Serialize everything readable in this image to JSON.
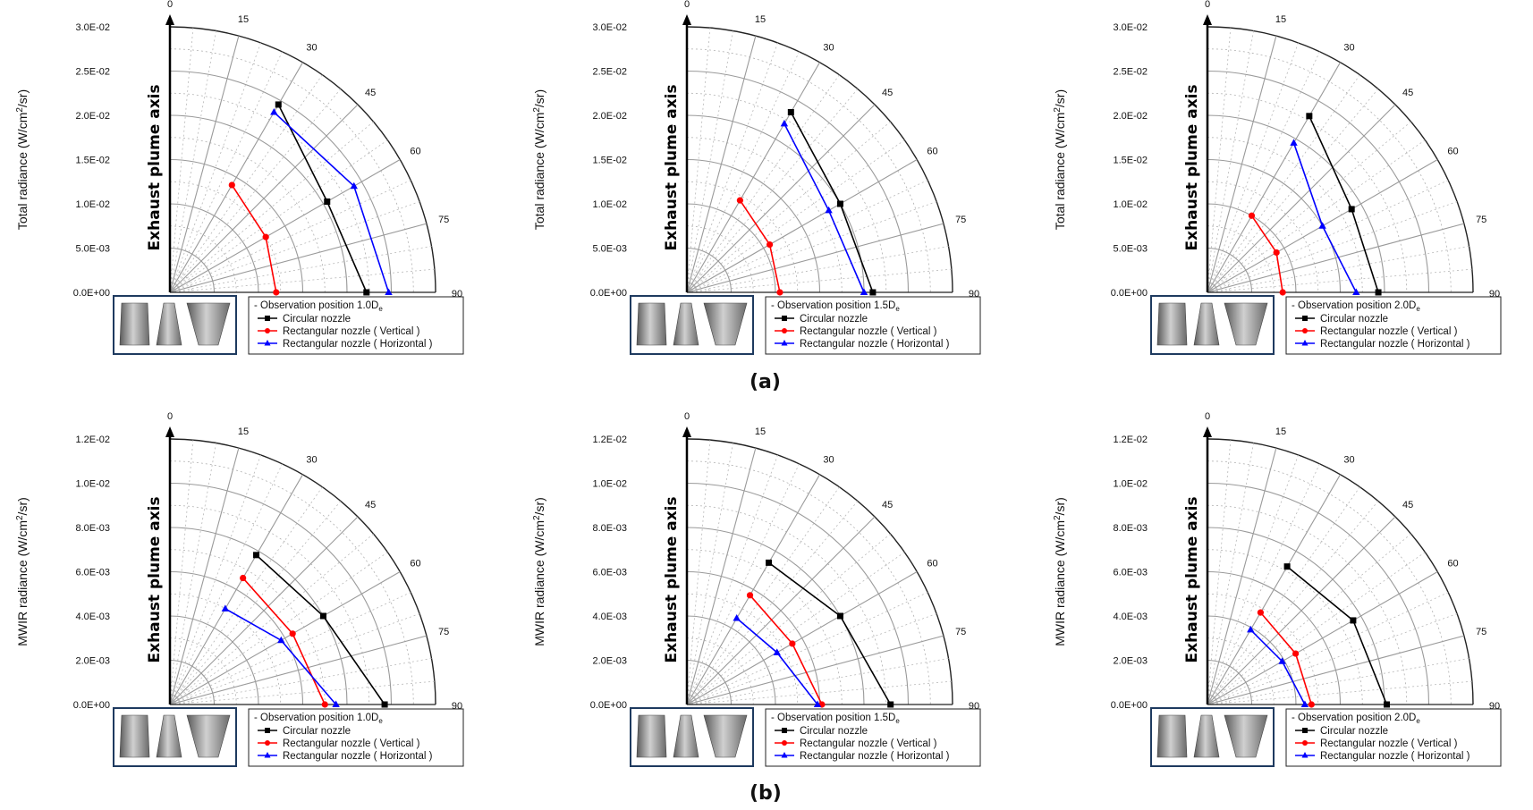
{
  "figure": {
    "caption_a": "(a)",
    "caption_b": "(b)",
    "axis_title": "Exhaust plume axis",
    "row_labels": {
      "a": {
        "ylabel_prefix": "Total radiance (W/cm",
        "ylabel_sup": "2",
        "ylabel_suffix": "/sr)"
      },
      "b": {
        "ylabel_prefix": "MWIR radiance  (W/cm",
        "ylabel_sup": "2",
        "ylabel_suffix": "/sr)"
      }
    },
    "legend_entries": [
      "Circular nozzle",
      "Rectangular nozzle ( Vertical )",
      "Rectangular nozzle ( Horizontal )"
    ],
    "series_colors": [
      "#000000",
      "#ff0000",
      "#0000ff"
    ],
    "series_markers": [
      "square",
      "circle",
      "triangle"
    ],
    "angle_ticks": [
      0,
      15,
      30,
      45,
      60,
      75,
      90
    ]
  },
  "chart_data": [
    {
      "type": "polar-line",
      "row": "a",
      "title": "- Observation position 1.0D",
      "title_subscript": "e",
      "ylabel": "Total radiance (W/cm2/sr)",
      "rlim": [
        0,
        0.03
      ],
      "r_ticks": [
        "0.0E+00",
        "5.0E-03",
        "1.0E-02",
        "1.5E-02",
        "2.0E-02",
        "2.5E-02",
        "3.0E-02"
      ],
      "angles": [
        30,
        60,
        90
      ],
      "series": [
        {
          "name": "Circular nozzle",
          "values": [
            0.0245,
            0.0205,
            0.0222
          ]
        },
        {
          "name": "Rectangular nozzle ( Vertical )",
          "values": [
            0.014,
            0.0125,
            0.012
          ]
        },
        {
          "name": "Rectangular nozzle ( Horizontal )",
          "values": [
            0.0235,
            0.024,
            0.0247
          ]
        }
      ]
    },
    {
      "type": "polar-line",
      "row": "a",
      "title": "- Observation position 1.5D",
      "title_subscript": "e",
      "ylabel": "Total radiance (W/cm2/sr)",
      "rlim": [
        0,
        0.03
      ],
      "r_ticks": [
        "0.0E+00",
        "5.0E-03",
        "1.0E-02",
        "1.5E-02",
        "2.0E-02",
        "2.5E-02",
        "3.0E-02"
      ],
      "angles": [
        30,
        60,
        90
      ],
      "series": [
        {
          "name": "Circular nozzle",
          "values": [
            0.0235,
            0.02,
            0.021
          ]
        },
        {
          "name": "Rectangular nozzle ( Vertical )",
          "values": [
            0.012,
            0.0108,
            0.0105
          ]
        },
        {
          "name": "Rectangular nozzle ( Horizontal )",
          "values": [
            0.022,
            0.0185,
            0.02
          ]
        }
      ]
    },
    {
      "type": "polar-line",
      "row": "a",
      "title": "- Observation position 2.0D",
      "title_subscript": "e",
      "ylabel": "Total radiance (W/cm2/sr)",
      "rlim": [
        0,
        0.03
      ],
      "r_ticks": [
        "0.0E+00",
        "5.0E-03",
        "1.0E-02",
        "1.5E-02",
        "2.0E-02",
        "2.5E-02",
        "3.0E-02"
      ],
      "angles": [
        30,
        60,
        90
      ],
      "series": [
        {
          "name": "Circular nozzle",
          "values": [
            0.023,
            0.0188,
            0.0193
          ]
        },
        {
          "name": "Rectangular nozzle ( Vertical )",
          "values": [
            0.01,
            0.009,
            0.0085
          ]
        },
        {
          "name": "Rectangular nozzle ( Horizontal )",
          "values": [
            0.0195,
            0.015,
            0.0168
          ]
        }
      ]
    },
    {
      "type": "polar-line",
      "row": "b",
      "title": "- Observation position 1.0D",
      "title_subscript": "e",
      "ylabel": "MWIR radiance (W/cm2/sr)",
      "rlim": [
        0,
        0.012
      ],
      "r_ticks": [
        "0.0E+00",
        "2.0E-03",
        "4.0E-03",
        "6.0E-03",
        "8.0E-03",
        "1.0E-02",
        "1.2E-02"
      ],
      "angles": [
        30,
        60,
        90
      ],
      "series": [
        {
          "name": "Circular nozzle",
          "values": [
            0.0078,
            0.008,
            0.0097
          ]
        },
        {
          "name": "Rectangular nozzle ( Vertical )",
          "values": [
            0.0066,
            0.0064,
            0.007
          ]
        },
        {
          "name": "Rectangular nozzle ( Horizontal )",
          "values": [
            0.005,
            0.0058,
            0.0075
          ]
        }
      ]
    },
    {
      "type": "polar-line",
      "row": "b",
      "title": "- Observation position 1.5D",
      "title_subscript": "e",
      "ylabel": "MWIR radiance (W/cm2/sr)",
      "rlim": [
        0,
        0.012
      ],
      "r_ticks": [
        "0.0E+00",
        "2.0E-03",
        "4.0E-03",
        "6.0E-03",
        "8.0E-03",
        "1.0E-02",
        "1.2E-02"
      ],
      "angles": [
        30,
        60,
        90
      ],
      "series": [
        {
          "name": "Circular nozzle",
          "values": [
            0.0074,
            0.008,
            0.0092
          ]
        },
        {
          "name": "Rectangular nozzle ( Vertical )",
          "values": [
            0.0057,
            0.0055,
            0.0061
          ]
        },
        {
          "name": "Rectangular nozzle ( Horizontal )",
          "values": [
            0.0045,
            0.0047,
            0.0059
          ]
        }
      ]
    },
    {
      "type": "polar-line",
      "row": "b",
      "title": "- Observation position 2.0D",
      "title_subscript": "e",
      "ylabel": "MWIR radiance (W/cm2/sr)",
      "rlim": [
        0,
        0.012
      ],
      "r_ticks": [
        "0.0E+00",
        "2.0E-03",
        "4.0E-03",
        "6.0E-03",
        "8.0E-03",
        "1.0E-02",
        "1.2E-02"
      ],
      "angles": [
        30,
        60,
        90
      ],
      "series": [
        {
          "name": "Circular nozzle",
          "values": [
            0.0072,
            0.0076,
            0.0081
          ]
        },
        {
          "name": "Rectangular nozzle ( Vertical )",
          "values": [
            0.0048,
            0.0046,
            0.0047
          ]
        },
        {
          "name": "Rectangular nozzle ( Horizontal )",
          "values": [
            0.0039,
            0.0039,
            0.0044
          ]
        }
      ]
    }
  ]
}
